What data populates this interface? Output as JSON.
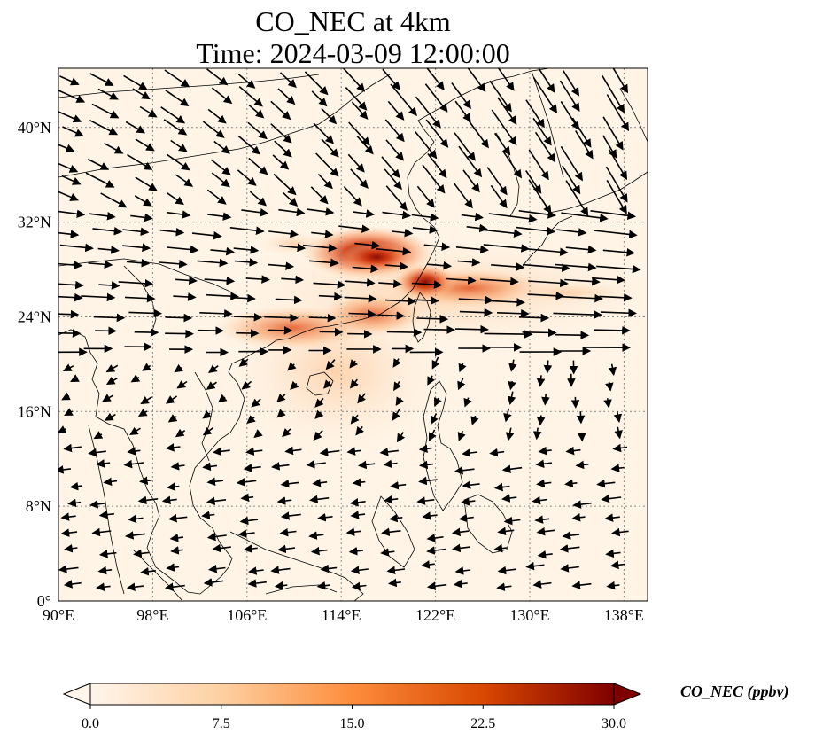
{
  "title_line1": "CO_NEC at 4km",
  "title_line2": "Time: 2024-03-09 12:00:00",
  "map": {
    "lon_range": [
      90,
      140
    ],
    "lat_range": [
      0,
      45
    ],
    "lon_ticks": [
      "90°E",
      "98°E",
      "106°E",
      "114°E",
      "122°E",
      "130°E",
      "138°E"
    ],
    "lon_tick_values": [
      90,
      98,
      106,
      114,
      122,
      130,
      138
    ],
    "lat_ticks": [
      "0°",
      "8°N",
      "16°N",
      "24°N",
      "32°N",
      "40°N"
    ],
    "lat_tick_values": [
      0,
      8,
      16,
      24,
      32,
      40
    ],
    "gridlines": true
  },
  "colorbar": {
    "label": "CO_NEC (ppbv)",
    "ticks": [
      "0.0",
      "7.5",
      "15.0",
      "22.5",
      "30.0"
    ],
    "range": [
      0,
      30
    ],
    "colormap": [
      "#fff5eb",
      "#fdd0a2",
      "#fd8d3c",
      "#d94801",
      "#7f0000"
    ]
  }
}
